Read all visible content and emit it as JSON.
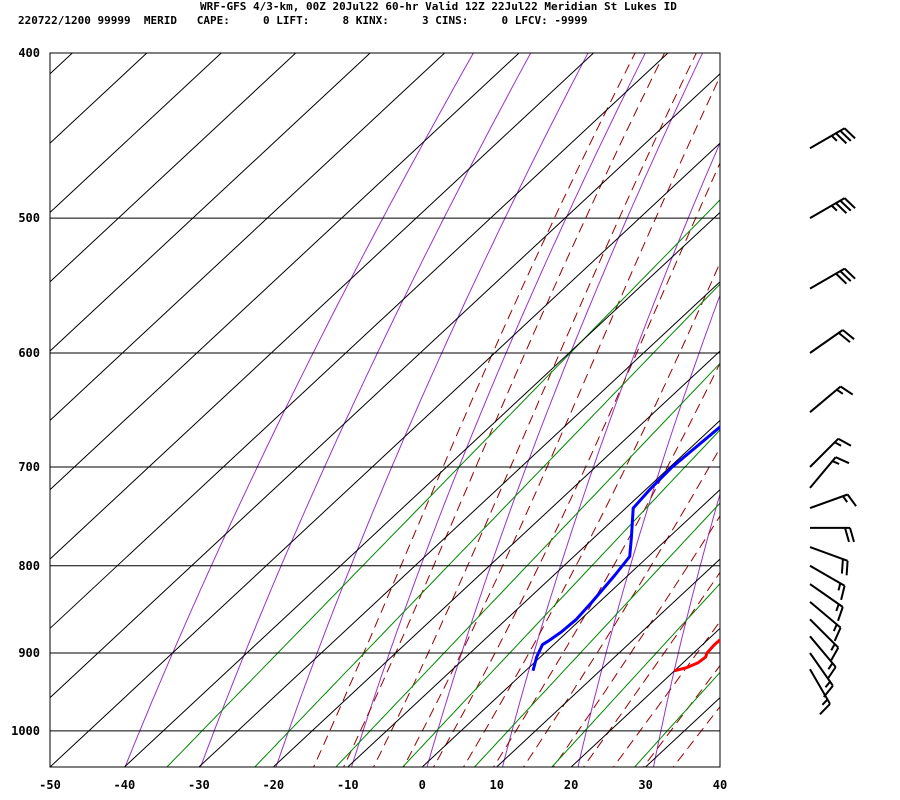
{
  "header": {
    "line1": "WRF-GFS 4/3-km, 00Z 20Jul22 60-hr Valid 12Z 22Jul22 Meridian St Lukes ID",
    "line2": "220722/1200 99999  MERID   CAPE:     0 LIFT:     8 KINX:     3 CINS:     0 LFCV: -9999"
  },
  "chart_data": {
    "type": "line",
    "subtype": "skew-t log-p sounding",
    "x_axis": {
      "ticks": [
        -50,
        -40,
        -30,
        -20,
        -10,
        0,
        10,
        20,
        30,
        40
      ],
      "range": [
        -50,
        40
      ]
    },
    "y_axis": {
      "ticks": [
        400,
        500,
        600,
        700,
        800,
        900,
        1000
      ],
      "range": [
        400,
        1050
      ],
      "scale": "log, inverted"
    },
    "colors": {
      "temperature": "#ff0000",
      "dewpoint": "#0000ff",
      "dry_adiabat": "#9933cc",
      "moist_adiabat": "#990000",
      "mixing_ratio": "#008800",
      "isotherm_isobar": "#000000",
      "wind_barb": "#000000"
    },
    "series": [
      {
        "points": [
          [
            922,
            20.0
          ],
          [
            918,
            21.2
          ],
          [
            912,
            22.0
          ],
          [
            905,
            22.2
          ],
          [
            900,
            21.8
          ],
          [
            890,
            21.6
          ],
          [
            880,
            21.7
          ],
          [
            870,
            21.8
          ],
          [
            860,
            21.7
          ],
          [
            850,
            21.5
          ],
          [
            840,
            21.0
          ],
          [
            820,
            20.0
          ],
          [
            800,
            19.0
          ],
          [
            770,
            17.5
          ],
          [
            740,
            16.4
          ],
          [
            720,
            14.5
          ],
          [
            700,
            12.5
          ],
          [
            680,
            10.0
          ],
          [
            650,
            6.5
          ],
          [
            600,
            0.5
          ],
          [
            550,
            -4.5
          ],
          [
            500,
            -9.0
          ],
          [
            450,
            -14.0
          ]
        ]
      },
      {
        "points": [
          [
            922,
            1.0
          ],
          [
            905,
            -0.5
          ],
          [
            890,
            -1.5
          ],
          [
            885,
            -1.2
          ],
          [
            875,
            -0.8
          ],
          [
            860,
            -0.6
          ],
          [
            840,
            -1.0
          ],
          [
            810,
            -1.8
          ],
          [
            790,
            -2.5
          ],
          [
            770,
            -5.0
          ],
          [
            740,
            -9.0
          ],
          [
            720,
            -9.5
          ],
          [
            700,
            -9.7
          ],
          [
            650,
            -8.8
          ],
          [
            595,
            -8.5
          ],
          [
            550,
            -13.0
          ],
          [
            500,
            -19.0
          ],
          [
            450,
            -20.0
          ]
        ]
      }
    ],
    "wind_barbs": [
      {
        "p": 455,
        "dir": 240,
        "speed": 35
      },
      {
        "p": 500,
        "dir": 240,
        "speed": 35
      },
      {
        "p": 550,
        "dir": 240,
        "speed": 30
      },
      {
        "p": 600,
        "dir": 235,
        "speed": 20
      },
      {
        "p": 650,
        "dir": 230,
        "speed": 15
      },
      {
        "p": 700,
        "dir": 225,
        "speed": 15
      },
      {
        "p": 720,
        "dir": 220,
        "speed": 15
      },
      {
        "p": 740,
        "dir": 250,
        "speed": 15
      },
      {
        "p": 760,
        "dir": 270,
        "speed": 20
      },
      {
        "p": 780,
        "dir": 290,
        "speed": 20
      },
      {
        "p": 800,
        "dir": 300,
        "speed": 15
      },
      {
        "p": 820,
        "dir": 305,
        "speed": 15
      },
      {
        "p": 840,
        "dir": 310,
        "speed": 15
      },
      {
        "p": 860,
        "dir": 315,
        "speed": 15
      },
      {
        "p": 880,
        "dir": 320,
        "speed": 15
      },
      {
        "p": 900,
        "dir": 325,
        "speed": 15
      },
      {
        "p": 920,
        "dir": 330,
        "speed": 15
      }
    ]
  }
}
